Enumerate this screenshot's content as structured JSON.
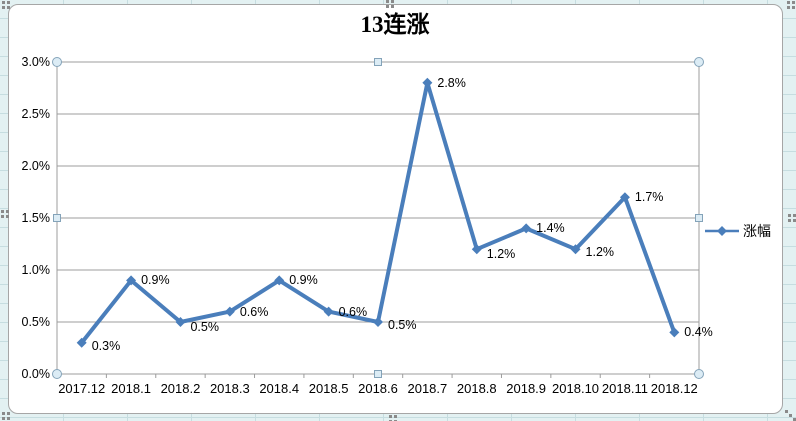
{
  "chart_data": {
    "type": "line",
    "title": "13连涨",
    "categories": [
      "2017.12",
      "2018.1",
      "2018.2",
      "2018.3",
      "2018.4",
      "2018.5",
      "2018.6",
      "2018.7",
      "2018.8",
      "2018.9",
      "2018.10",
      "2018.11",
      "2018.12"
    ],
    "series": [
      {
        "name": "涨幅",
        "values": [
          0.3,
          0.9,
          0.5,
          0.6,
          0.9,
          0.6,
          0.5,
          2.8,
          1.2,
          1.4,
          1.2,
          1.7,
          0.4
        ],
        "data_labels": [
          "0.3%",
          "0.9%",
          "0.5%",
          "0.6%",
          "0.9%",
          "0.6%",
          "0.5%",
          "2.8%",
          "1.2%",
          "1.4%",
          "1.2%",
          "1.7%",
          "0.4%"
        ]
      }
    ],
    "yticks": {
      "values": [
        0,
        0.5,
        1.0,
        1.5,
        2.0,
        2.5,
        3.0
      ],
      "labels": [
        "0.0%",
        "0.5%",
        "1.0%",
        "1.5%",
        "2.0%",
        "2.5%",
        "3.0%"
      ]
    },
    "ylim": [
      0,
      3.0
    ],
    "grid": true,
    "legend_position": "right",
    "marker": "diamond",
    "colors": {
      "series": "#4A7EBB",
      "gridline": "#9c9c9c",
      "axis_text": "#000000",
      "chart_background": "#ffffff",
      "worksheet_background": "#e3f1f2",
      "handle_fill": "#dcecf5",
      "handle_border": "#84a3b9"
    }
  }
}
